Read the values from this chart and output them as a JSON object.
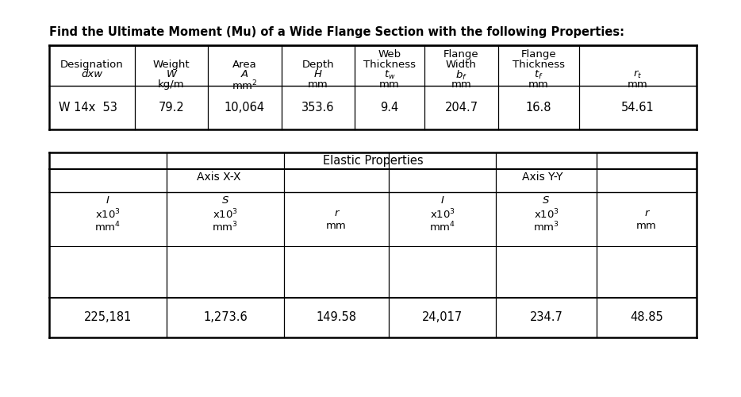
{
  "title": "Find the Ultimate Moment (Mu) of a Wide Flange Section with the following Properties:",
  "title_fontsize": 10.5,
  "background_color": "#ffffff",
  "table1_col_headers_line1": [
    "",
    "",
    "",
    "",
    "Web",
    "Flange",
    "Flange",
    ""
  ],
  "table1_col_headers_line2": [
    "Designation",
    "Weight",
    "Area",
    "Depth",
    "Thickness",
    "Width",
    "Thickness",
    ""
  ],
  "table1_col_headers_line3": [
    "dxw",
    "W",
    "A",
    "H",
    "tw",
    "bf",
    "tf",
    "rt"
  ],
  "table1_col_headers_line4": [
    "",
    "kg/m",
    "mm2",
    "mm",
    "mm",
    "mm",
    "mm",
    "mm"
  ],
  "table1_data": [
    [
      "W 14x  53",
      "79.2",
      "10,064",
      "353.6",
      "9.4",
      "204.7",
      "16.8",
      "54.61"
    ]
  ],
  "table2_title": "Elastic Properties",
  "table2_axis_xx": "Axis X-X",
  "table2_axis_yy": "Axis Y-Y",
  "table2_data": [
    [
      "225,181",
      "1,273.6",
      "149.58",
      "24,017",
      "234.7",
      "48.85"
    ]
  ],
  "font_family": "DejaVu Sans"
}
